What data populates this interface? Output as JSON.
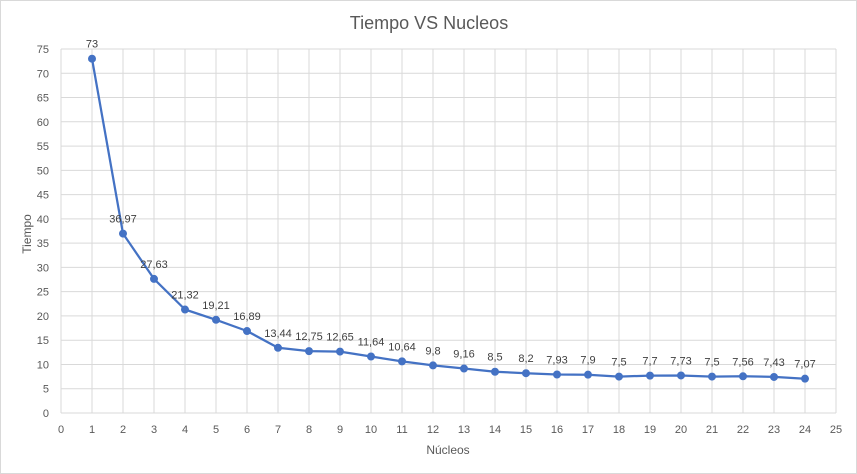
{
  "chart_data": {
    "type": "scatter",
    "title": "Tiempo VS Nucleos",
    "xlabel": "Núcleos",
    "ylabel": "Tiempo",
    "xlim": [
      0,
      25
    ],
    "ylim": [
      0,
      75
    ],
    "xticks": [
      "0",
      "1",
      "2",
      "3",
      "4",
      "5",
      "6",
      "7",
      "8",
      "9",
      "10",
      "11",
      "12",
      "13",
      "14",
      "15",
      "16",
      "17",
      "18",
      "19",
      "20",
      "21",
      "22",
      "23",
      "24",
      "25"
    ],
    "yticks": [
      "0",
      "5",
      "10",
      "15",
      "20",
      "25",
      "30",
      "35",
      "40",
      "45",
      "50",
      "55",
      "60",
      "65",
      "70",
      "75"
    ],
    "grid": true,
    "legend": "none",
    "series": [
      {
        "color": "#4472c4",
        "x": [
          1,
          2,
          3,
          4,
          5,
          6,
          7,
          8,
          9,
          10,
          11,
          12,
          13,
          14,
          15,
          16,
          17,
          18,
          19,
          20,
          21,
          22,
          23,
          24
        ],
        "y": [
          73,
          36.97,
          27.63,
          21.32,
          19.21,
          16.89,
          13.44,
          12.75,
          12.65,
          11.64,
          10.64,
          9.8,
          9.16,
          8.5,
          8.2,
          7.93,
          7.9,
          7.5,
          7.7,
          7.73,
          7.5,
          7.56,
          7.43,
          7.07
        ],
        "labels": [
          "73",
          "36,97",
          "27,63",
          "21,32",
          "19,21",
          "16,89",
          "13,44",
          "12,75",
          "12,65",
          "11,64",
          "10,64",
          "9,8",
          "9,16",
          "8,5",
          "8,2",
          "7,93",
          "7,9",
          "7,5",
          "7,7",
          "7,73",
          "7,5",
          "7,56",
          "7,43",
          "7,07"
        ]
      }
    ]
  }
}
